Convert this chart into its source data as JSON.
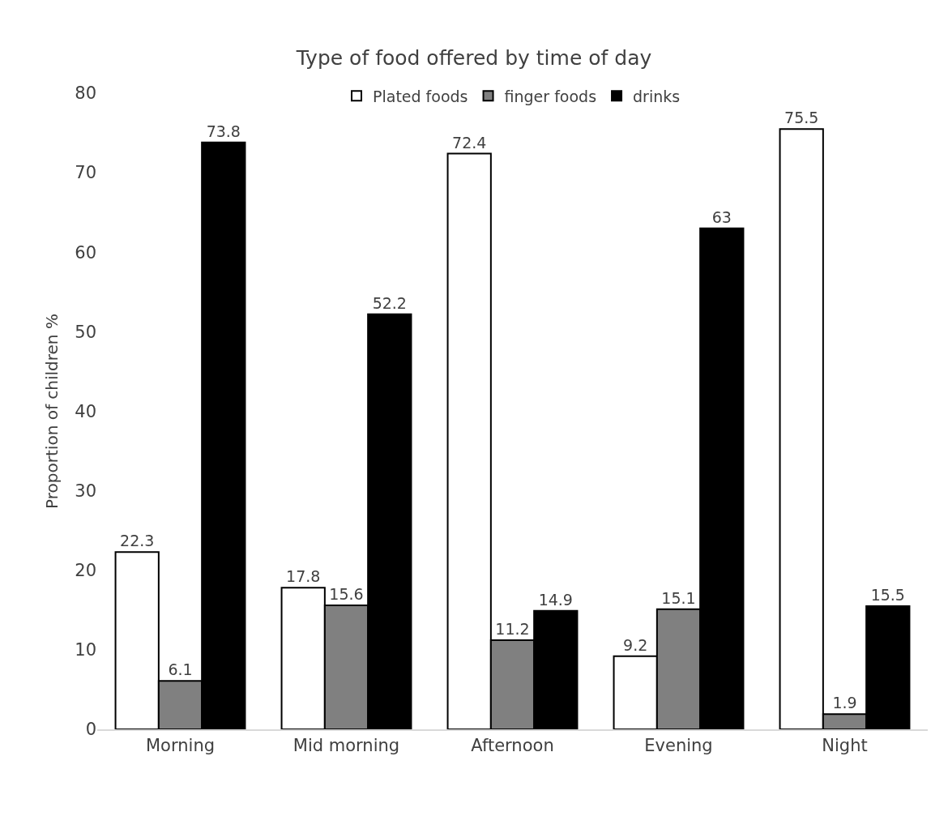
{
  "chart_data": {
    "type": "bar",
    "title": "Type of food offered by time of day",
    "ylabel": "Proportion of children %",
    "categories": [
      "Morning",
      "Mid morning",
      "Afternoon",
      "Evening",
      "Night"
    ],
    "series": [
      {
        "name": "Plated foods",
        "color": "#ffffff",
        "values": [
          22.3,
          17.8,
          72.4,
          9.2,
          75.5
        ]
      },
      {
        "name": "finger foods",
        "color": "#808080",
        "values": [
          6.1,
          15.6,
          11.2,
          15.1,
          1.9
        ]
      },
      {
        "name": "drinks",
        "color": "#000000",
        "values": [
          73.8,
          52.2,
          14.9,
          63,
          15.5
        ]
      }
    ],
    "ylim": [
      0,
      80
    ],
    "yticks": [
      0,
      10,
      20,
      30,
      40,
      50,
      60,
      70,
      80
    ],
    "grid": false,
    "legend": "top",
    "data_labels": true
  }
}
